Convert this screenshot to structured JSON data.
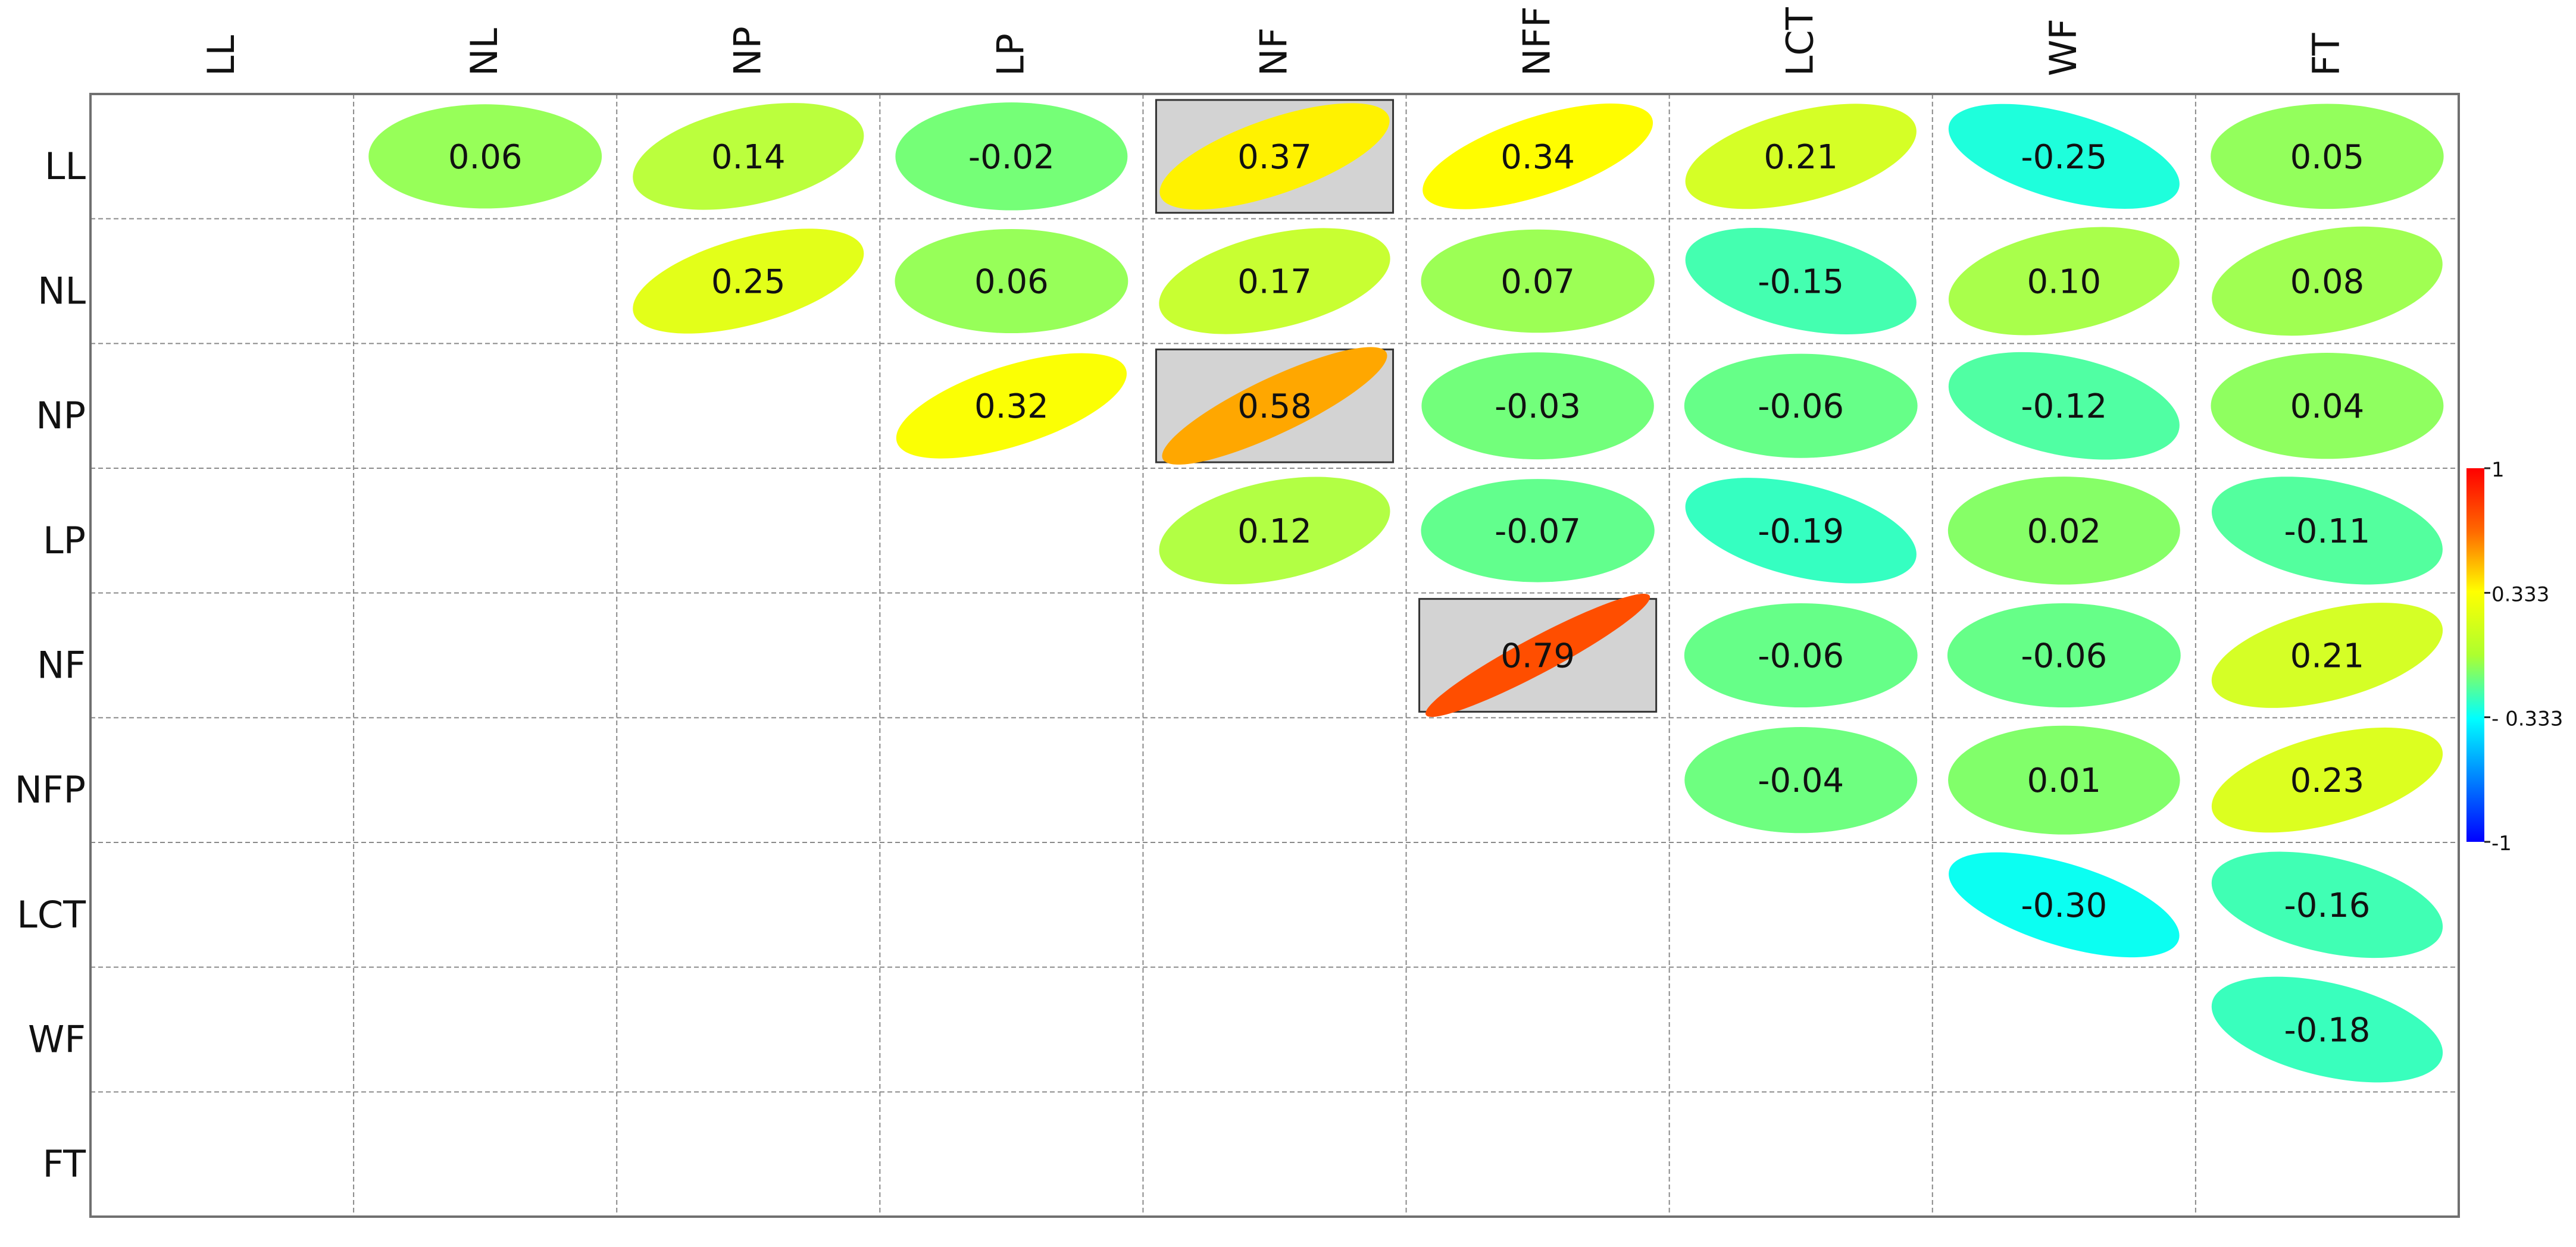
{
  "chart_data": {
    "type": "heatmap",
    "style": "correlation ellipse matrix, upper triangle",
    "variables_top": [
      "LL",
      "NL",
      "NP",
      "LP",
      "NF",
      "NFF",
      "LCT",
      "WF",
      "FT"
    ],
    "variables_left": [
      "LL",
      "NL",
      "NP",
      "LP",
      "NF",
      "NFP",
      "LCT",
      "WF",
      "FT"
    ],
    "cells": [
      {
        "row": 0,
        "col": 1,
        "value": 0.06,
        "label": "0.06"
      },
      {
        "row": 0,
        "col": 2,
        "value": 0.14,
        "label": "0.14"
      },
      {
        "row": 0,
        "col": 3,
        "value": -0.02,
        "label": "-0.02"
      },
      {
        "row": 0,
        "col": 4,
        "value": 0.37,
        "label": "0.37",
        "highlighted": true
      },
      {
        "row": 0,
        "col": 5,
        "value": 0.34,
        "label": "0.34"
      },
      {
        "row": 0,
        "col": 6,
        "value": 0.21,
        "label": "0.21"
      },
      {
        "row": 0,
        "col": 7,
        "value": -0.25,
        "label": "-0.25"
      },
      {
        "row": 0,
        "col": 8,
        "value": 0.05,
        "label": "0.05"
      },
      {
        "row": 1,
        "col": 2,
        "value": 0.25,
        "label": "0.25"
      },
      {
        "row": 1,
        "col": 3,
        "value": 0.06,
        "label": "0.06"
      },
      {
        "row": 1,
        "col": 4,
        "value": 0.17,
        "label": "0.17"
      },
      {
        "row": 1,
        "col": 5,
        "value": 0.07,
        "label": "0.07"
      },
      {
        "row": 1,
        "col": 6,
        "value": -0.15,
        "label": "-0.15"
      },
      {
        "row": 1,
        "col": 7,
        "value": 0.1,
        "label": "0.10"
      },
      {
        "row": 1,
        "col": 8,
        "value": 0.08,
        "label": "0.08"
      },
      {
        "row": 2,
        "col": 3,
        "value": 0.32,
        "label": "0.32"
      },
      {
        "row": 2,
        "col": 4,
        "value": 0.58,
        "label": "0.58",
        "highlighted": true
      },
      {
        "row": 2,
        "col": 5,
        "value": -0.03,
        "label": "-0.03"
      },
      {
        "row": 2,
        "col": 6,
        "value": -0.06,
        "label": "-0.06"
      },
      {
        "row": 2,
        "col": 7,
        "value": -0.12,
        "label": "-0.12"
      },
      {
        "row": 2,
        "col": 8,
        "value": 0.04,
        "label": "0.04"
      },
      {
        "row": 3,
        "col": 4,
        "value": 0.12,
        "label": "0.12"
      },
      {
        "row": 3,
        "col": 5,
        "value": -0.07,
        "label": "-0.07"
      },
      {
        "row": 3,
        "col": 6,
        "value": -0.19,
        "label": "-0.19"
      },
      {
        "row": 3,
        "col": 7,
        "value": 0.02,
        "label": "0.02"
      },
      {
        "row": 3,
        "col": 8,
        "value": -0.11,
        "label": "-0.11"
      },
      {
        "row": 4,
        "col": 5,
        "value": 0.79,
        "label": "0.79",
        "highlighted": true
      },
      {
        "row": 4,
        "col": 6,
        "value": -0.06,
        "label": "-0.06"
      },
      {
        "row": 4,
        "col": 7,
        "value": -0.06,
        "label": "-0.06"
      },
      {
        "row": 4,
        "col": 8,
        "value": 0.21,
        "label": "0.21"
      },
      {
        "row": 5,
        "col": 6,
        "value": -0.04,
        "label": "-0.04"
      },
      {
        "row": 5,
        "col": 7,
        "value": 0.01,
        "label": "0.01"
      },
      {
        "row": 5,
        "col": 8,
        "value": 0.23,
        "label": "0.23"
      },
      {
        "row": 6,
        "col": 7,
        "value": -0.3,
        "label": "-0.30"
      },
      {
        "row": 6,
        "col": 8,
        "value": -0.16,
        "label": "-0.16"
      },
      {
        "row": 7,
        "col": 8,
        "value": -0.18,
        "label": "-0.18"
      }
    ],
    "colorbar": {
      "range": [
        -1,
        1
      ],
      "ticks": [
        "1",
        "0.333",
        "- 0.333",
        "-1"
      ],
      "tick_values": [
        1,
        0.333,
        -0.333,
        -1
      ],
      "colors": [
        "#ff0000",
        "#ffa500",
        "#ffff00",
        "#adff2f",
        "#00ffff",
        "#0000ff"
      ]
    },
    "highlight_fill": "#d3d3d3",
    "grid": "dashed"
  }
}
